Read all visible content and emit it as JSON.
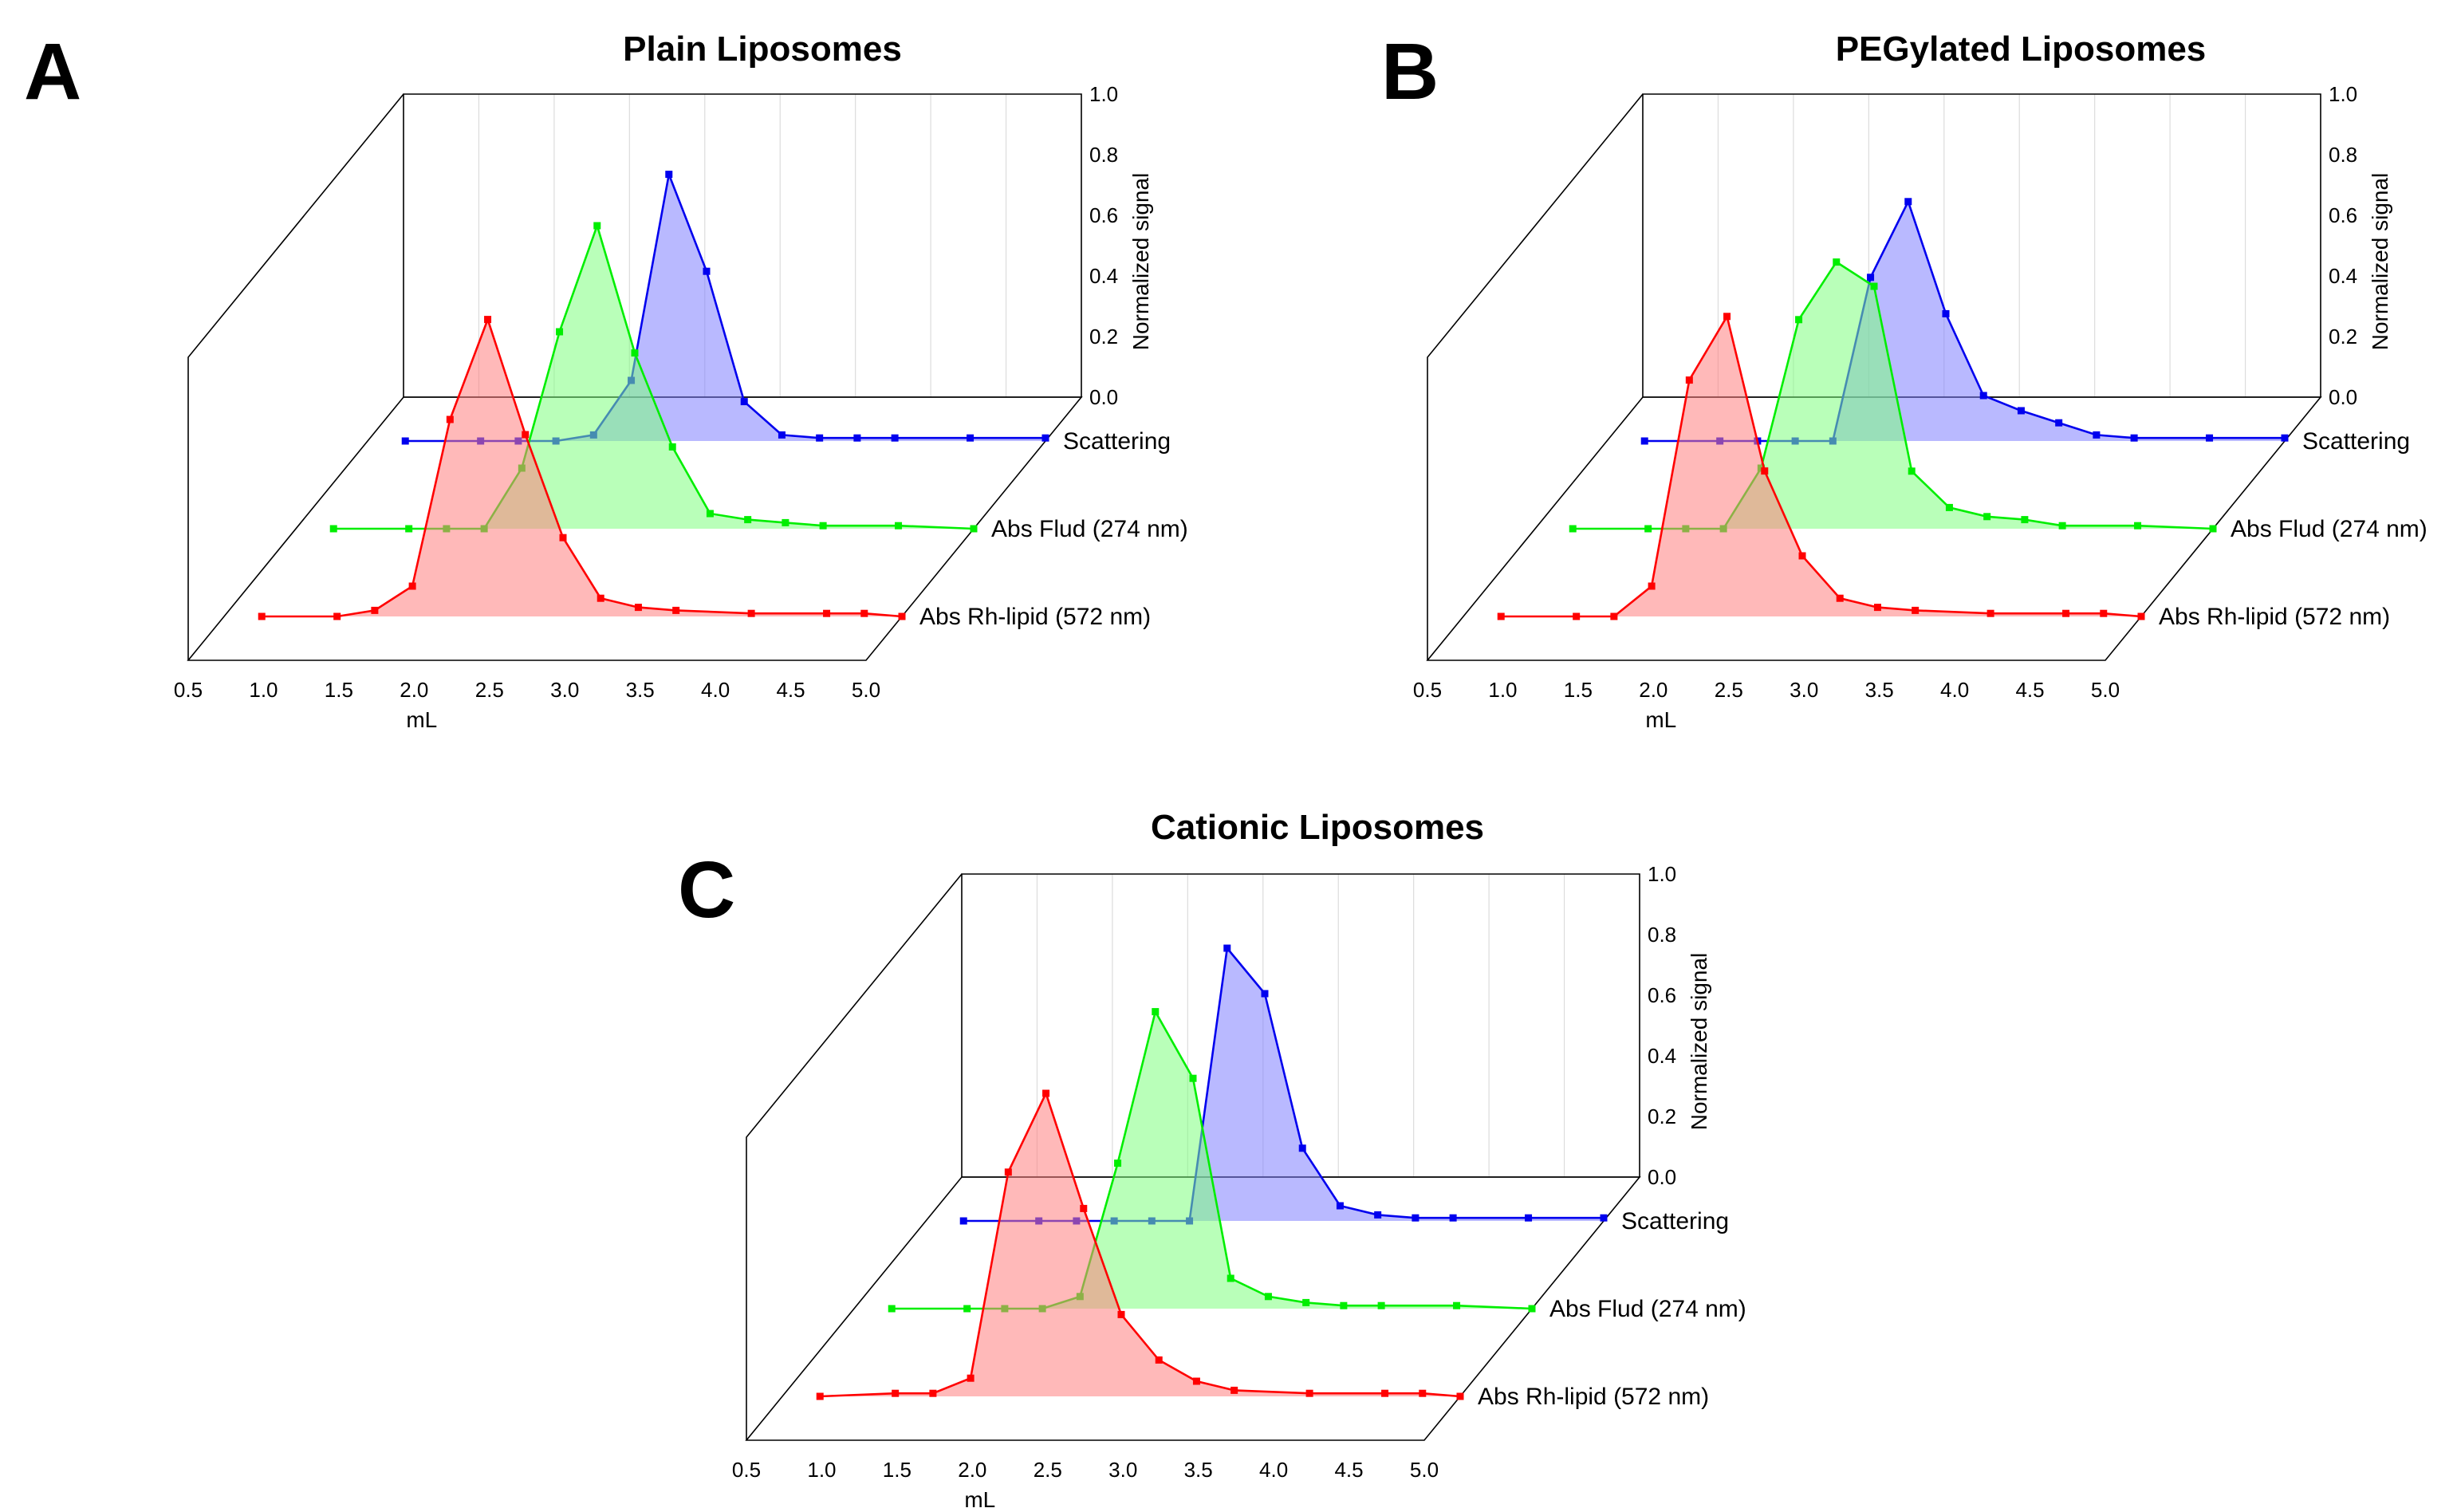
{
  "chart_data": [
    {
      "panel_letter": "A",
      "type": "area",
      "title": "Plain Liposomes",
      "xlabel": "mL",
      "zlabel": "Normalized signal",
      "xlim": [
        0.5,
        5.0
      ],
      "zlim": [
        0.0,
        1.0
      ],
      "x_ticks": [
        "0.5",
        "1.0",
        "1.5",
        "2.0",
        "2.5",
        "3.0",
        "3.5",
        "4.0",
        "4.5",
        "5.0"
      ],
      "z_ticks": [
        "0.0",
        "0.2",
        "0.4",
        "0.6",
        "0.8",
        "1.0"
      ],
      "series": [
        {
          "name": "Abs Rh-lipid (572 nm)",
          "color": "#ff0000",
          "fill": "#ff8080",
          "x": [
            0.75,
            1.25,
            1.5,
            1.75,
            2.0,
            2.25,
            2.5,
            2.75,
            3.0,
            3.25,
            3.5,
            4.0,
            4.5,
            4.75,
            5.0
          ],
          "y": [
            0.0,
            0.0,
            0.02,
            0.1,
            0.65,
            0.98,
            0.6,
            0.26,
            0.06,
            0.03,
            0.02,
            0.01,
            0.01,
            0.01,
            0.0
          ]
        },
        {
          "name": "Abs Flud (274 nm)",
          "color": "#00ee00",
          "fill": "#80ff80",
          "x": [
            0.75,
            1.25,
            1.5,
            1.75,
            2.0,
            2.25,
            2.5,
            2.75,
            3.0,
            3.25,
            3.5,
            3.75,
            4.0,
            4.5,
            5.0
          ],
          "y": [
            0.0,
            0.0,
            0.0,
            0.0,
            0.2,
            0.65,
            1.0,
            0.58,
            0.27,
            0.05,
            0.03,
            0.02,
            0.01,
            0.01,
            0.0
          ]
        },
        {
          "name": "Scattering",
          "color": "#0000ee",
          "fill": "#8080ff",
          "x": [
            0.75,
            1.25,
            1.5,
            1.75,
            2.0,
            2.25,
            2.5,
            2.75,
            3.0,
            3.25,
            3.5,
            3.75,
            4.0,
            4.5,
            5.0
          ],
          "y": [
            0.0,
            0.0,
            0.0,
            0.0,
            0.02,
            0.2,
            0.88,
            0.56,
            0.13,
            0.02,
            0.01,
            0.01,
            0.01,
            0.01,
            0.01
          ]
        }
      ]
    },
    {
      "panel_letter": "B",
      "type": "area",
      "title": "PEGylated Liposomes",
      "xlabel": "mL",
      "zlabel": "Normalized signal",
      "xlim": [
        0.5,
        5.0
      ],
      "zlim": [
        0.0,
        1.0
      ],
      "x_ticks": [
        "0.5",
        "1.0",
        "1.5",
        "2.0",
        "2.5",
        "3.0",
        "3.5",
        "4.0",
        "4.5",
        "5.0"
      ],
      "z_ticks": [
        "0.0",
        "0.2",
        "0.4",
        "0.6",
        "0.8",
        "1.0"
      ],
      "series": [
        {
          "name": "Abs Rh-lipid (572 nm)",
          "color": "#ff0000",
          "fill": "#ff8080",
          "x": [
            0.75,
            1.25,
            1.5,
            1.75,
            2.0,
            2.25,
            2.5,
            2.75,
            3.0,
            3.25,
            3.5,
            4.0,
            4.5,
            4.75,
            5.0
          ],
          "y": [
            0.0,
            0.0,
            0.0,
            0.1,
            0.78,
            0.99,
            0.48,
            0.2,
            0.06,
            0.03,
            0.02,
            0.01,
            0.01,
            0.01,
            0.0
          ]
        },
        {
          "name": "Abs Flud (274 nm)",
          "color": "#00ee00",
          "fill": "#80ff80",
          "x": [
            0.75,
            1.25,
            1.5,
            1.75,
            2.0,
            2.25,
            2.5,
            2.75,
            3.0,
            3.25,
            3.5,
            3.75,
            4.0,
            4.5,
            5.0
          ],
          "y": [
            0.0,
            0.0,
            0.0,
            0.0,
            0.2,
            0.69,
            0.88,
            0.8,
            0.19,
            0.07,
            0.04,
            0.03,
            0.01,
            0.01,
            0.0
          ]
        },
        {
          "name": "Scattering",
          "color": "#0000ee",
          "fill": "#8080ff",
          "x": [
            0.75,
            1.25,
            1.5,
            1.75,
            2.0,
            2.25,
            2.5,
            2.75,
            3.0,
            3.25,
            3.5,
            3.75,
            4.0,
            4.5,
            5.0
          ],
          "y": [
            0.0,
            0.0,
            0.0,
            0.0,
            0.0,
            0.54,
            0.79,
            0.42,
            0.15,
            0.1,
            0.06,
            0.02,
            0.01,
            0.01,
            0.01
          ]
        }
      ]
    },
    {
      "panel_letter": "C",
      "type": "area",
      "title": "Cationic Liposomes",
      "xlabel": "mL",
      "zlabel": "Normalized signal",
      "xlim": [
        0.5,
        5.0
      ],
      "zlim": [
        0.0,
        1.0
      ],
      "x_ticks": [
        "0.5",
        "1.0",
        "1.5",
        "2.0",
        "2.5",
        "3.0",
        "3.5",
        "4.0",
        "4.5",
        "5.0"
      ],
      "z_ticks": [
        "0.0",
        "0.2",
        "0.4",
        "0.6",
        "0.8",
        "1.0"
      ],
      "series": [
        {
          "name": "Abs Rh-lipid (572 nm)",
          "color": "#ff0000",
          "fill": "#ff8080",
          "x": [
            0.75,
            1.25,
            1.5,
            1.75,
            2.0,
            2.25,
            2.5,
            2.75,
            3.0,
            3.25,
            3.5,
            4.0,
            4.5,
            4.75,
            5.0
          ],
          "y": [
            0.0,
            0.01,
            0.01,
            0.06,
            0.74,
            1.0,
            0.62,
            0.27,
            0.12,
            0.05,
            0.02,
            0.01,
            0.01,
            0.01,
            0.0
          ]
        },
        {
          "name": "Abs Flud (274 nm)",
          "color": "#00ee00",
          "fill": "#80ff80",
          "x": [
            0.75,
            1.25,
            1.5,
            1.75,
            2.0,
            2.25,
            2.5,
            2.75,
            3.0,
            3.25,
            3.5,
            3.75,
            4.0,
            4.5,
            5.0
          ],
          "y": [
            0.0,
            0.0,
            0.0,
            0.0,
            0.04,
            0.48,
            0.98,
            0.76,
            0.1,
            0.04,
            0.02,
            0.01,
            0.01,
            0.01,
            0.0
          ]
        },
        {
          "name": "Scattering",
          "color": "#0000ee",
          "fill": "#8080ff",
          "x": [
            0.75,
            1.25,
            1.5,
            1.75,
            2.0,
            2.25,
            2.5,
            2.75,
            3.0,
            3.25,
            3.5,
            3.75,
            4.0,
            4.5,
            5.0
          ],
          "y": [
            0.0,
            0.0,
            0.0,
            0.0,
            0.0,
            0.0,
            0.9,
            0.75,
            0.24,
            0.05,
            0.02,
            0.01,
            0.01,
            0.01,
            0.01
          ]
        }
      ]
    }
  ]
}
